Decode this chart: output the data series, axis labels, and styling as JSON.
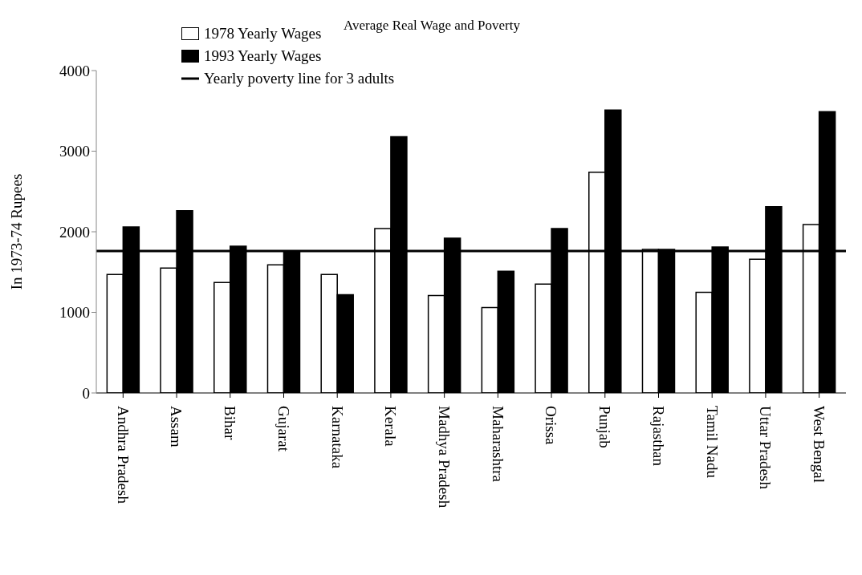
{
  "chart_data": {
    "type": "bar",
    "title": "Average Real Wage and Poverty",
    "ylabel": "In 1973-74 Rupees",
    "categories": [
      "Andhra Pradesh",
      "Assam",
      "Bihar",
      "Gujarat",
      "Karnataka",
      "Kerala",
      "Madhya Pradesh",
      "Maharashtra",
      "Orissa",
      "Punjab",
      "Rajasthan",
      "Tamil Nadu",
      "Uttar Pradesh",
      "West Bengal"
    ],
    "series": [
      {
        "name": "1978 Yearly Wages",
        "color": "#ffffff",
        "values": [
          1470,
          1550,
          1370,
          1590,
          1470,
          2040,
          1210,
          1060,
          1350,
          2740,
          1780,
          1250,
          1660,
          2090
        ]
      },
      {
        "name": "1993 Yearly Wages",
        "color": "#000000",
        "values": [
          2060,
          2260,
          1820,
          1750,
          1220,
          3180,
          1920,
          1510,
          2040,
          3510,
          1780,
          1810,
          2310,
          3490
        ]
      }
    ],
    "ref_lines": [
      {
        "axis": "y",
        "value": 1760,
        "label": "Yearly poverty line for 3 adults",
        "color": "#000000",
        "line_style": "solid"
      }
    ],
    "ylim": [
      0,
      4000
    ],
    "yticks": [
      0,
      1000,
      2000,
      3000,
      4000
    ],
    "grid": false,
    "legend": "top left"
  }
}
